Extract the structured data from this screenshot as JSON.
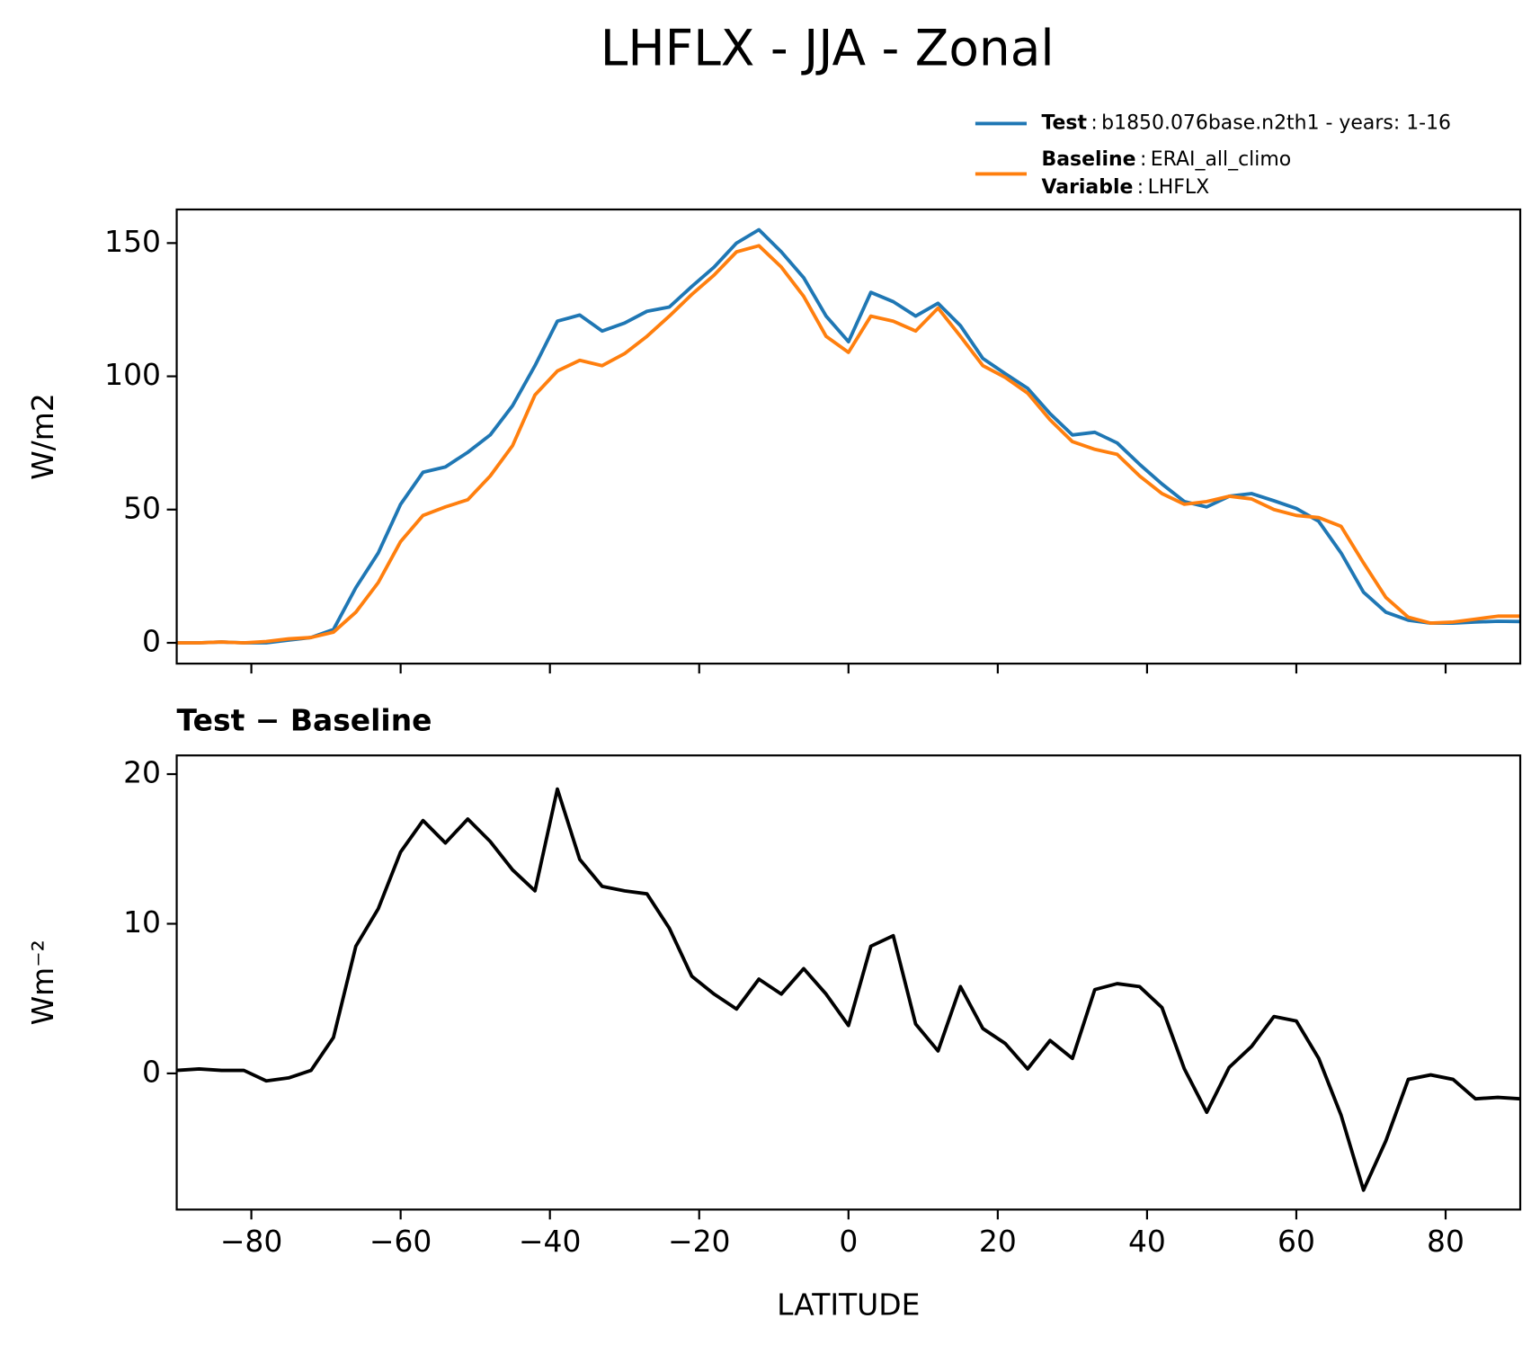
{
  "chart_data": [
    {
      "type": "line",
      "title": "LHFLX - JJA - Zonal",
      "ylabel": "W/m2",
      "x": [
        -90,
        -87,
        -84,
        -81,
        -78,
        -75,
        -72,
        -69,
        -66,
        -63,
        -60,
        -57,
        -54,
        -51,
        -48,
        -45,
        -42,
        -39,
        -36,
        -33,
        -30,
        -27,
        -24,
        -21,
        -18,
        -15,
        -12,
        -9,
        -6,
        -3,
        0,
        3,
        6,
        9,
        12,
        15,
        18,
        21,
        24,
        27,
        30,
        33,
        36,
        39,
        42,
        45,
        48,
        51,
        54,
        57,
        60,
        63,
        66,
        69,
        72,
        75,
        78,
        81,
        84,
        87,
        90
      ],
      "legend_separator": ":",
      "series": [
        {
          "name": "Test",
          "label": "b1850.076base.n2th1 - years: 1-16",
          "color": "#1f77b4",
          "values": [
            0,
            0,
            0.3,
            0,
            0,
            1,
            2,
            5,
            20.7,
            33.7,
            52,
            64,
            66,
            71.5,
            78,
            89,
            104,
            120.7,
            123,
            117,
            120,
            124.4,
            126,
            133.7,
            141,
            150,
            155,
            146.7,
            137,
            122.6,
            113,
            131.5,
            128,
            122.6,
            127.4,
            119,
            106.7,
            101,
            95.5,
            86,
            78,
            79,
            75,
            67,
            59.6,
            53,
            51,
            55,
            56,
            53.3,
            50.4,
            45.6,
            33.7,
            19,
            11.5,
            8.5,
            7.4,
            7.4,
            7.8,
            8.1,
            8
          ]
        },
        {
          "name": "Baseline",
          "label": "ERAI_all_climo",
          "color": "#ff7f0e",
          "values": [
            0,
            0,
            0.3,
            0,
            0.5,
            1.5,
            2,
            4,
            11.5,
            22.6,
            38,
            47.8,
            51,
            53.7,
            62.6,
            74,
            93,
            102,
            106,
            104,
            108.5,
            115,
            122.6,
            130.7,
            138,
            146.7,
            149,
            141,
            130,
            115,
            109,
            122.6,
            120.7,
            117,
            125.6,
            115,
            104,
            99.6,
            93.7,
            83.7,
            75.5,
            72.6,
            70.7,
            62.6,
            56,
            52,
            53,
            55,
            54,
            50,
            47.8,
            47,
            43.7,
            30,
            17,
            9.6,
            7.4,
            7.8,
            8.9,
            10,
            10
          ]
        }
      ],
      "variable": {
        "name": "Variable",
        "label": "LHFLX"
      },
      "xlim": [
        -90,
        90
      ],
      "xticks": [
        -80,
        -60,
        -40,
        -20,
        0,
        20,
        40,
        60,
        80
      ],
      "ylim": [
        -7.8,
        162.6
      ],
      "yticks": [
        0,
        50,
        100,
        150
      ]
    },
    {
      "type": "line",
      "subtitle": "Test − Baseline",
      "ylabel": "Wm⁻²",
      "xlabel": "LATITUDE",
      "x": [
        -90,
        -87,
        -84,
        -81,
        -78,
        -75,
        -72,
        -69,
        -66,
        -63,
        -60,
        -57,
        -54,
        -51,
        -48,
        -45,
        -42,
        -39,
        -36,
        -33,
        -30,
        -27,
        -24,
        -21,
        -18,
        -15,
        -12,
        -9,
        -6,
        -3,
        0,
        3,
        6,
        9,
        12,
        15,
        18,
        21,
        24,
        27,
        30,
        33,
        36,
        39,
        42,
        45,
        48,
        51,
        54,
        57,
        60,
        63,
        66,
        69,
        72,
        75,
        78,
        81,
        84,
        87,
        90
      ],
      "series": [
        {
          "color": "#000000",
          "values": [
            0.2,
            0.3,
            0.2,
            0.2,
            -0.5,
            -0.3,
            0.2,
            2.4,
            8.5,
            11,
            14.8,
            16.9,
            15.4,
            17,
            15.5,
            13.6,
            12.2,
            19,
            14.3,
            12.5,
            12.2,
            12,
            9.7,
            6.5,
            5.3,
            4.3,
            6.3,
            5.3,
            7,
            5.3,
            3.2,
            8.5,
            9.2,
            3.3,
            1.5,
            5.8,
            3,
            2,
            0.3,
            2.2,
            1,
            5.6,
            6,
            5.8,
            4.4,
            0.3,
            -2.6,
            0.4,
            1.8,
            3.8,
            3.5,
            1,
            -2.8,
            -7.8,
            -4.5,
            -0.4,
            -0.1,
            -0.4,
            -1.7,
            -1.6,
            -1.7
          ]
        }
      ],
      "xlim": [
        -90,
        90
      ],
      "xticks": [
        {
          "value": -80,
          "label": "−80"
        },
        {
          "value": -60,
          "label": "−60"
        },
        {
          "value": -40,
          "label": "−40"
        },
        {
          "value": -20,
          "label": "−20"
        },
        0,
        20,
        40,
        60,
        80
      ],
      "ylim": [
        -9.1,
        21.25
      ],
      "yticks": [
        0,
        10,
        20
      ]
    }
  ]
}
